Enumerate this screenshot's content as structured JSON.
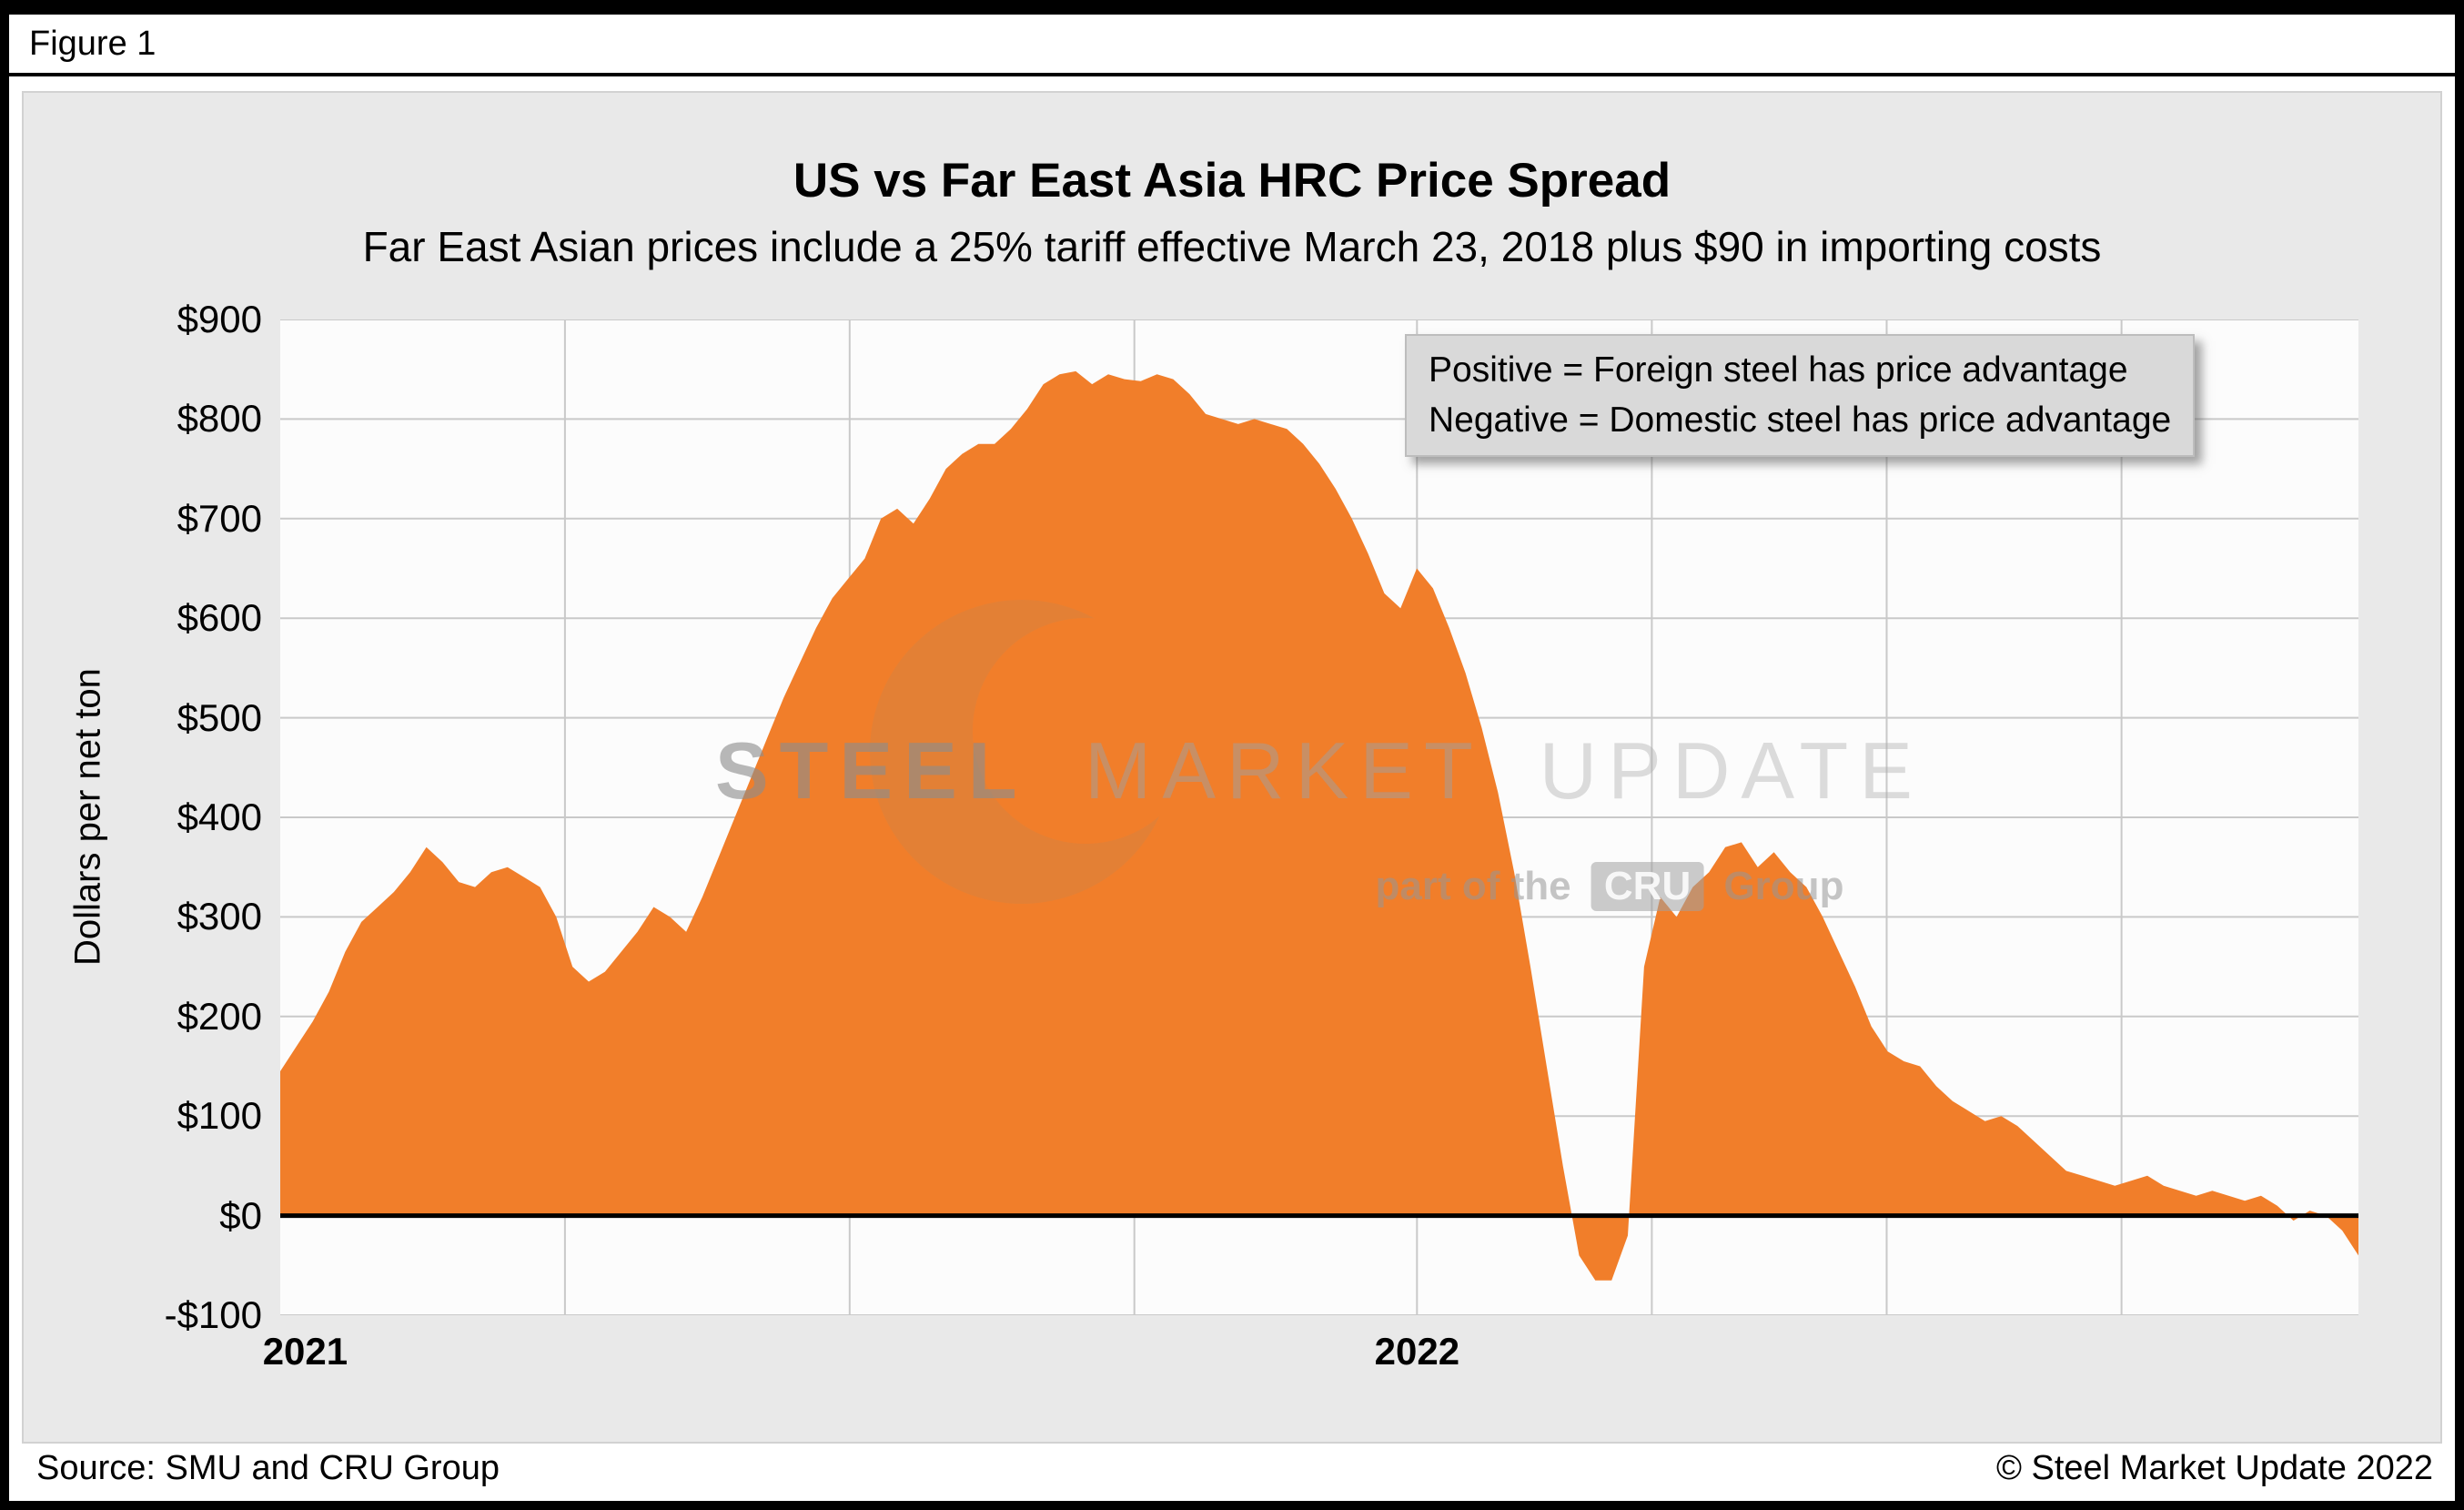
{
  "figure_label": "Figure 1",
  "chart_data": {
    "type": "area",
    "title": "US vs Far East Asia HRC Price Spread",
    "subtitle": "Far East Asian prices include a 25% tariff effective March 23, 2018 plus $90 in importing costs",
    "ylabel": "Dollars per net ton",
    "ylim": [
      -100,
      900
    ],
    "grid_on": true,
    "series_name": "US vs Far East Asia HRC price spread ($ per net ton)",
    "y_ticks": [
      {
        "label": "$900",
        "value": 900
      },
      {
        "label": "$800",
        "value": 800
      },
      {
        "label": "$700",
        "value": 700
      },
      {
        "label": "$600",
        "value": 600
      },
      {
        "label": "$500",
        "value": 500
      },
      {
        "label": "$400",
        "value": 400
      },
      {
        "label": "$300",
        "value": 300
      },
      {
        "label": "$200",
        "value": 200
      },
      {
        "label": "$100",
        "value": 100
      },
      {
        "label": "$0",
        "value": 0
      },
      {
        "label": "-$100",
        "value": -100
      }
    ],
    "x_ticks": [
      {
        "label": "2021",
        "pos": 0.012
      },
      {
        "label": "2022",
        "pos": 0.547
      }
    ],
    "x_gridlines": [
      0.137,
      0.274,
      0.411,
      0.547,
      0.66,
      0.773,
      0.886
    ],
    "values": [
      145,
      170,
      195,
      225,
      265,
      295,
      310,
      325,
      345,
      370,
      355,
      335,
      330,
      345,
      350,
      340,
      330,
      300,
      250,
      235,
      245,
      265,
      285,
      310,
      300,
      285,
      320,
      360,
      400,
      440,
      480,
      520,
      555,
      590,
      620,
      640,
      660,
      700,
      710,
      695,
      720,
      750,
      765,
      775,
      775,
      790,
      810,
      835,
      845,
      848,
      835,
      845,
      840,
      838,
      845,
      840,
      825,
      805,
      800,
      795,
      800,
      795,
      790,
      775,
      755,
      730,
      700,
      665,
      625,
      610,
      650,
      630,
      590,
      545,
      490,
      425,
      345,
      250,
      150,
      50,
      -40,
      -65,
      -65,
      -20,
      250,
      320,
      300,
      330,
      345,
      370,
      375,
      350,
      365,
      345,
      330,
      300,
      265,
      230,
      190,
      165,
      155,
      150,
      130,
      115,
      105,
      95,
      100,
      90,
      75,
      60,
      45,
      40,
      35,
      30,
      35,
      40,
      30,
      25,
      20,
      25,
      20,
      15,
      20,
      10,
      -5,
      5,
      0,
      -15,
      -40
    ],
    "legend_note": [
      "Positive = Foreign steel has price advantage",
      "Negative = Domestic steel has price advantage"
    ]
  },
  "watermark": {
    "brand_bold": "STEEL",
    "brand_mid": "MARKET",
    "brand_last": "UPDATE",
    "tagline_prefix": "part of the",
    "tagline_cru": "CRU",
    "tagline_suffix": "Group"
  },
  "footer": {
    "source": "Source: SMU and CRU Group",
    "copyright": "© Steel Market Update 2022"
  },
  "colors": {
    "area": "#F17E2A",
    "gridline": "#C9C9C9",
    "zero_line": "#000000",
    "panel_bg": "#E9E9E9",
    "legend_bg": "#D9D9D9"
  }
}
